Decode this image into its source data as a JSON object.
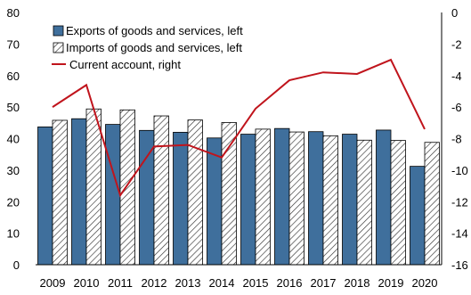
{
  "chart_data": {
    "type": "bar",
    "categories": [
      "2009",
      "2010",
      "2011",
      "2012",
      "2013",
      "2014",
      "2015",
      "2016",
      "2017",
      "2018",
      "2019",
      "2020"
    ],
    "series": [
      {
        "name": "Exports of goods and services, left",
        "kind": "bar",
        "axis": "left",
        "color": "#3f6f9c",
        "values": [
          43.7,
          46.3,
          44.5,
          42.6,
          42.0,
          40.2,
          41.4,
          43.2,
          42.2,
          41.4,
          42.7,
          31.2
        ]
      },
      {
        "name": "Imports of goods and services, left",
        "kind": "bar",
        "axis": "left",
        "pattern": "hatched",
        "values": [
          45.8,
          49.4,
          49.1,
          47.2,
          45.9,
          45.1,
          43.0,
          42.1,
          40.9,
          39.5,
          39.4,
          38.8
        ]
      },
      {
        "name": "Current account, right",
        "kind": "line",
        "axis": "right",
        "color": "#c0141c",
        "values": [
          -6.0,
          -4.6,
          -11.6,
          -8.5,
          -8.4,
          -9.2,
          -6.1,
          -4.3,
          -3.8,
          -3.9,
          -3.0,
          -7.4
        ]
      }
    ],
    "y_left": {
      "ylim": [
        0,
        80
      ],
      "ticks": [
        "0",
        "10",
        "20",
        "30",
        "40",
        "50",
        "60",
        "70",
        "80"
      ]
    },
    "y_right": {
      "ylim": [
        -16,
        0
      ],
      "ticks": [
        "0",
        "-2",
        "-4",
        "-6",
        "-8",
        "-10",
        "-12",
        "-14",
        "-16"
      ]
    },
    "legend": "top-left",
    "grid": false
  }
}
